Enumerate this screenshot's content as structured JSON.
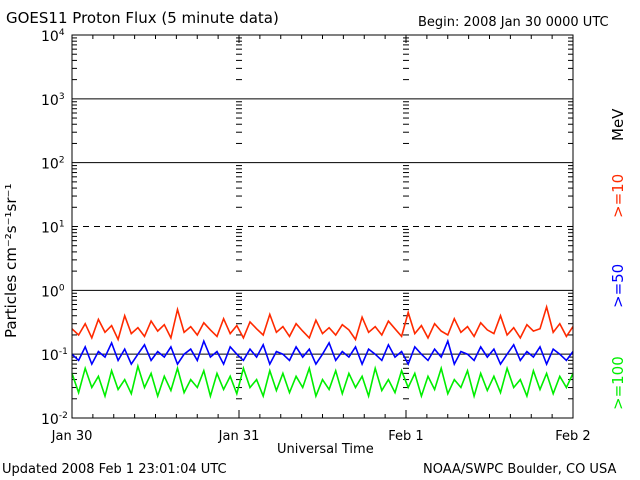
{
  "header": {
    "title": "GOES11 Proton Flux (5 minute data)",
    "begin": "Begin: 2008 Jan 30 0000 UTC"
  },
  "footer": {
    "updated": "Updated 2008 Feb  1 23:01:04 UTC",
    "credit": "NOAA/SWPC Boulder, CO USA"
  },
  "legend": {
    "unit": "MeV",
    "items": [
      {
        "label": ">=10",
        "color": "#ff2a00"
      },
      {
        "label": ">=50",
        "color": "#0000ff"
      },
      {
        "label": ">=100",
        "color": "#00ee00"
      }
    ]
  },
  "chart_data": {
    "type": "line",
    "title": "GOES11 Proton Flux (5 minute data)",
    "xlabel": "Universal Time",
    "ylabel": "Particles cm⁻²s⁻¹sr⁻¹",
    "yscale": "log",
    "ylim": [
      0.01,
      10000
    ],
    "xlim_days": [
      "Jan 30",
      "Feb 2"
    ],
    "x_ticks": [
      "Jan 30",
      "Jan 31",
      "Feb 1",
      "Feb 2"
    ],
    "y_ticks": [
      {
        "base": "10",
        "exp": "-2"
      },
      {
        "base": "10",
        "exp": "-1"
      },
      {
        "base": "10",
        "exp": "0"
      },
      {
        "base": "10",
        "exp": "1"
      },
      {
        "base": "10",
        "exp": "2"
      },
      {
        "base": "10",
        "exp": "3"
      },
      {
        "base": "10",
        "exp": "4"
      }
    ],
    "grid": true,
    "series": [
      {
        "name": ">=10 MeV",
        "color": "#ff2a00",
        "values": [
          0.25,
          0.2,
          0.3,
          0.18,
          0.35,
          0.22,
          0.28,
          0.17,
          0.4,
          0.21,
          0.26,
          0.19,
          0.33,
          0.23,
          0.29,
          0.18,
          0.5,
          0.22,
          0.27,
          0.2,
          0.31,
          0.24,
          0.19,
          0.36,
          0.21,
          0.28,
          0.18,
          0.32,
          0.25,
          0.2,
          0.42,
          0.22,
          0.27,
          0.19,
          0.3,
          0.23,
          0.18,
          0.34,
          0.21,
          0.26,
          0.2,
          0.29,
          0.24,
          0.17,
          0.38,
          0.22,
          0.27,
          0.2,
          0.33,
          0.25,
          0.19,
          0.45,
          0.21,
          0.28,
          0.18,
          0.3,
          0.23,
          0.2,
          0.36,
          0.22,
          0.27,
          0.19,
          0.31,
          0.24,
          0.21,
          0.4,
          0.2,
          0.26,
          0.18,
          0.29,
          0.23,
          0.25,
          0.55,
          0.22,
          0.3,
          0.19,
          0.27
        ]
      },
      {
        "name": ">=50 MeV",
        "color": "#0000ff",
        "values": [
          0.1,
          0.08,
          0.13,
          0.07,
          0.11,
          0.09,
          0.15,
          0.08,
          0.12,
          0.07,
          0.1,
          0.14,
          0.08,
          0.11,
          0.09,
          0.13,
          0.07,
          0.1,
          0.12,
          0.08,
          0.16,
          0.09,
          0.11,
          0.07,
          0.13,
          0.1,
          0.08,
          0.12,
          0.09,
          0.14,
          0.07,
          0.11,
          0.1,
          0.08,
          0.13,
          0.09,
          0.12,
          0.07,
          0.1,
          0.15,
          0.08,
          0.11,
          0.09,
          0.13,
          0.07,
          0.12,
          0.1,
          0.08,
          0.14,
          0.09,
          0.11,
          0.07,
          0.13,
          0.1,
          0.08,
          0.12,
          0.09,
          0.16,
          0.07,
          0.11,
          0.1,
          0.08,
          0.13,
          0.09,
          0.12,
          0.07,
          0.1,
          0.14,
          0.08,
          0.11,
          0.09,
          0.13,
          0.07,
          0.12,
          0.1,
          0.08,
          0.11
        ]
      },
      {
        "name": ">=100 MeV",
        "color": "#00ee00",
        "values": [
          0.05,
          0.025,
          0.06,
          0.03,
          0.045,
          0.022,
          0.055,
          0.028,
          0.04,
          0.024,
          0.065,
          0.03,
          0.05,
          0.022,
          0.045,
          0.027,
          0.06,
          0.025,
          0.04,
          0.03,
          0.055,
          0.022,
          0.05,
          0.028,
          0.045,
          0.024,
          0.06,
          0.03,
          0.04,
          0.022,
          0.055,
          0.027,
          0.05,
          0.025,
          0.045,
          0.03,
          0.06,
          0.022,
          0.04,
          0.028,
          0.055,
          0.024,
          0.05,
          0.03,
          0.045,
          0.022,
          0.06,
          0.027,
          0.04,
          0.025,
          0.055,
          0.03,
          0.05,
          0.022,
          0.045,
          0.028,
          0.06,
          0.024,
          0.04,
          0.03,
          0.055,
          0.022,
          0.05,
          0.027,
          0.045,
          0.025,
          0.06,
          0.03,
          0.04,
          0.022,
          0.055,
          0.028,
          0.05,
          0.024,
          0.045,
          0.03,
          0.05
        ]
      }
    ]
  }
}
